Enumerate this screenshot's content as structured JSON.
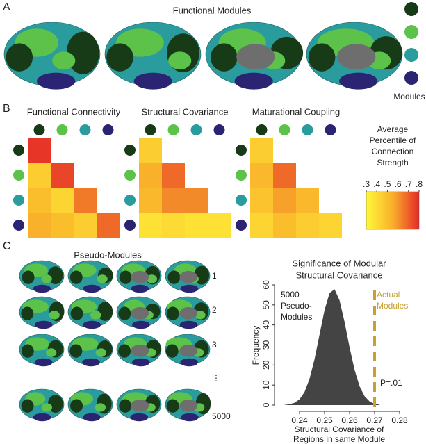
{
  "panels": {
    "a": "A",
    "b": "B",
    "c": "C"
  },
  "modules": {
    "title": "Modules",
    "colors": [
      "#173a17",
      "#5cc24a",
      "#2a9c9e",
      "#2b2472"
    ]
  },
  "panel_a": {
    "title": "Functional Modules"
  },
  "panel_c": {
    "title": "Pseudo-Modules",
    "row_labels": [
      "1",
      "2",
      "3",
      "⋮",
      "5000"
    ]
  },
  "colorbar": {
    "title_lines": [
      "Average",
      "Percentile of",
      "Connection",
      "Strength"
    ],
    "clim": [
      0.3,
      0.8
    ],
    "colormap": [
      "#fff83a",
      "#f9b02a",
      "#e52a28"
    ],
    "ticks": [
      {
        "value": 0.3,
        "label": ".3"
      },
      {
        "value": 0.4,
        "label": ".4"
      },
      {
        "value": 0.5,
        "label": ".5"
      },
      {
        "value": 0.6,
        "label": ".6"
      },
      {
        "value": 0.7,
        "label": ".7"
      },
      {
        "value": 0.8,
        "label": ".8"
      }
    ]
  },
  "chart_data": [
    {
      "type": "heatmap",
      "title": "Functional Connectivity",
      "values": [
        [
          0.78
        ],
        [
          0.45,
          0.75
        ],
        [
          0.5,
          0.42,
          0.65
        ],
        [
          0.55,
          0.5,
          0.45,
          0.68
        ]
      ]
    },
    {
      "type": "heatmap",
      "title": "Structural Covariance",
      "values": [
        [
          0.45
        ],
        [
          0.55,
          0.68
        ],
        [
          0.52,
          0.62,
          0.62
        ],
        [
          0.38,
          0.4,
          0.38,
          0.38
        ]
      ]
    },
    {
      "type": "heatmap",
      "title": "Maturational Coupling",
      "values": [
        [
          0.45
        ],
        [
          0.52,
          0.68
        ],
        [
          0.48,
          0.58,
          0.52
        ],
        [
          0.42,
          0.5,
          0.45,
          0.42
        ]
      ]
    },
    {
      "type": "area",
      "title_lines": [
        "Significance of Modular",
        "Structural Covariance"
      ],
      "xlabel_lines": [
        "Structural Covariance of",
        "Regions in same Module"
      ],
      "ylabel": "Frequency",
      "x": [
        0.234,
        0.236,
        0.238,
        0.24,
        0.242,
        0.244,
        0.246,
        0.248,
        0.25,
        0.252,
        0.254,
        0.256,
        0.258,
        0.26,
        0.262,
        0.264,
        0.266,
        0.268,
        0.27,
        0.272
      ],
      "values": [
        0.1,
        0.4,
        1.1,
        2.9,
        6.5,
        13.1,
        22.9,
        35.2,
        47.4,
        55.9,
        57.8,
        52.3,
        41.5,
        28.9,
        17.6,
        9.4,
        4.4,
        1.8,
        0.6,
        0.2
      ],
      "color": "#444444",
      "xlim": [
        0.235,
        0.28
      ],
      "xticks": [
        0.24,
        0.25,
        0.26,
        0.27,
        0.28
      ],
      "ylim": [
        0,
        60
      ],
      "yticks": [
        0,
        10,
        20,
        30,
        40,
        50,
        60
      ],
      "annotation_lines": [
        "5000",
        "Pseudo-",
        "Modules"
      ],
      "actual_value": 0.27,
      "actual_color": "#c9a030",
      "actual_label_lines": [
        "Actual",
        "Modules"
      ],
      "p_label": "P=.01"
    }
  ]
}
